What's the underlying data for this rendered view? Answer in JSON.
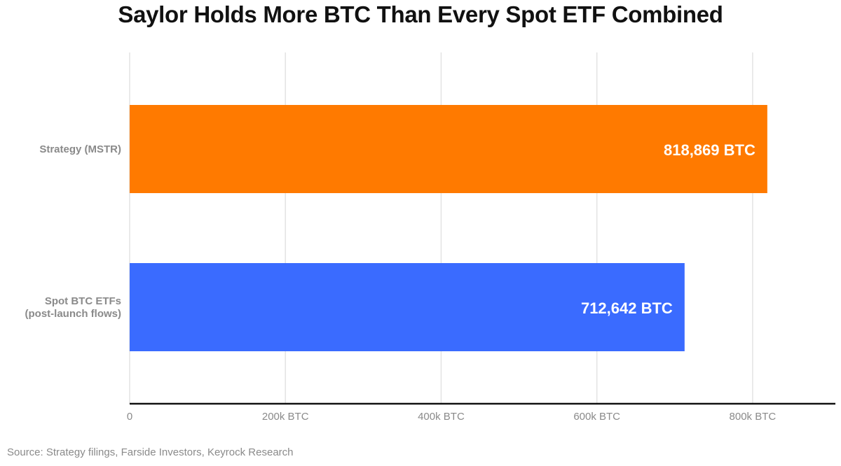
{
  "chart_data": {
    "type": "bar",
    "orientation": "horizontal",
    "title": "Saylor Holds More BTC Than Every Spot ETF Combined",
    "categories": [
      [
        "Strategy (MSTR)"
      ],
      [
        "Spot BTC ETFs",
        "(post-launch flows)"
      ]
    ],
    "values": [
      818869,
      712642
    ],
    "value_labels": [
      "818,869 BTC",
      "712,642 BTC"
    ],
    "colors": [
      "#FF7A00",
      "#3A6BFF"
    ],
    "xlim": [
      0,
      900000
    ],
    "x_ticks": [
      0,
      200000,
      400000,
      600000,
      800000
    ],
    "x_tick_labels": [
      "0",
      "200k BTC",
      "400k BTC",
      "600k BTC",
      "800k BTC"
    ],
    "grid": "vertical",
    "xlabel": "",
    "ylabel": ""
  },
  "source": "Source: Strategy filings, Farside Investors, Keyrock Research"
}
